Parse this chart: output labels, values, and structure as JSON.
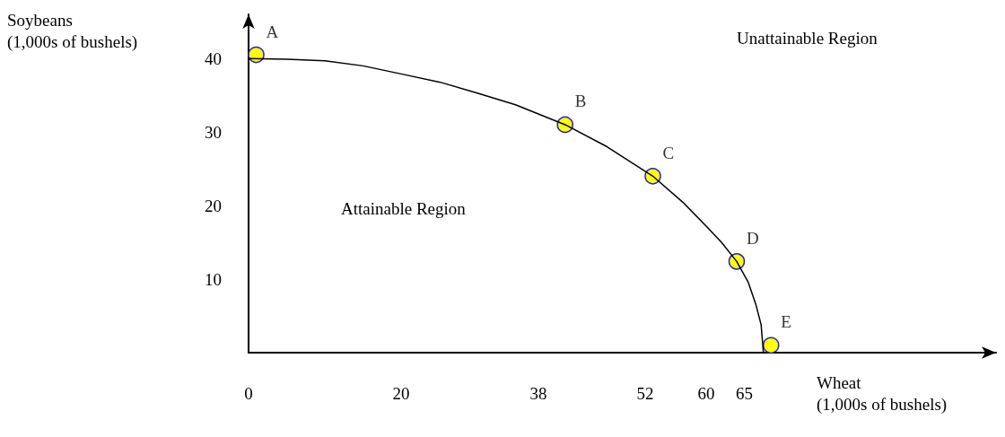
{
  "chart_data": {
    "type": "line",
    "xlabel": "Wheat\n(1,000s of bushels)",
    "ylabel": "Soybeans\n(1,000s of bushels)",
    "xlim": [
      0,
      98
    ],
    "ylim": [
      0,
      46
    ],
    "xticks": [
      0,
      20,
      38,
      52,
      60,
      65
    ],
    "yticks": [
      10,
      20,
      30,
      40
    ],
    "grid": false,
    "series": [
      {
        "color": "#000000",
        "marker": "none",
        "x": [
          0,
          5,
          10,
          15,
          20,
          25,
          30,
          35,
          41.5,
          47,
          53,
          57,
          60,
          62,
          64,
          65.5,
          66.5,
          67.2,
          67.5
        ],
        "values": [
          40,
          39.9,
          39.7,
          39,
          37.9,
          36.8,
          35.3,
          33.7,
          31,
          28,
          24,
          20.4,
          17.2,
          15,
          12.4,
          9.6,
          6.6,
          3.8,
          0
        ]
      },
      {
        "type": "scatter",
        "color": "#ffff00",
        "marker": "circle",
        "x": [
          1,
          41.5,
          53,
          64,
          68.5
        ],
        "values": [
          40.5,
          31,
          24,
          12.4,
          1
        ]
      }
    ],
    "annotations": [
      {
        "text": "A",
        "x": 1,
        "y": 40.5
      },
      {
        "text": "B",
        "x": 41.5,
        "y": 31
      },
      {
        "text": "C",
        "x": 53,
        "y": 24
      },
      {
        "text": "D",
        "x": 64,
        "y": 12.4
      },
      {
        "text": "E",
        "x": 68.5,
        "y": 1
      },
      "Attainable Region",
      "Unattainable Region"
    ]
  }
}
